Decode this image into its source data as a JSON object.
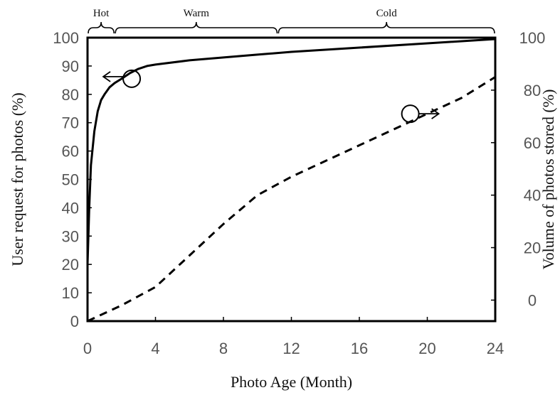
{
  "chart_data": {
    "type": "line",
    "xlabel": "Photo Age (Month)",
    "ylabel": "User request for photos (%)",
    "y2label": "Volume of photos stored (%)",
    "xlim": [
      0,
      24
    ],
    "ylim": [
      0,
      100
    ],
    "y2lim": [
      -8,
      100
    ],
    "x_ticks": [
      0,
      4,
      8,
      12,
      16,
      20,
      24
    ],
    "y_ticks": [
      0,
      10,
      20,
      30,
      40,
      50,
      60,
      70,
      80,
      90,
      100
    ],
    "y2_ticks": [
      0,
      20,
      40,
      60,
      80,
      100
    ],
    "grid": false,
    "regions": [
      {
        "label": "Hot",
        "x_start": 0,
        "x_end": 1.6
      },
      {
        "label": "Warm",
        "x_start": 1.6,
        "x_end": 11.2
      },
      {
        "label": "Cold",
        "x_start": 11.2,
        "x_end": 24
      }
    ],
    "series": [
      {
        "axis": "left",
        "style": "solid",
        "color": "#000000",
        "points": [
          [
            0,
            20
          ],
          [
            0.1,
            40
          ],
          [
            0.2,
            55
          ],
          [
            0.4,
            67
          ],
          [
            0.6,
            74
          ],
          [
            0.8,
            78
          ],
          [
            1,
            80
          ],
          [
            1.3,
            82.5
          ],
          [
            1.6,
            84
          ],
          [
            2,
            85.5
          ],
          [
            2.5,
            87.5
          ],
          [
            3,
            89
          ],
          [
            3.5,
            90
          ],
          [
            4,
            90.5
          ],
          [
            6,
            92
          ],
          [
            8,
            93
          ],
          [
            10,
            94
          ],
          [
            12,
            95
          ],
          [
            16,
            96.5
          ],
          [
            20,
            98
          ],
          [
            24,
            99.5
          ]
        ],
        "marker": {
          "x": 2.6,
          "y": 85.5,
          "arrow": "left"
        }
      },
      {
        "axis": "right",
        "style": "dashed",
        "color": "#000000",
        "points": [
          [
            0,
            -8
          ],
          [
            2,
            -2
          ],
          [
            4,
            5
          ],
          [
            6,
            17
          ],
          [
            8,
            29
          ],
          [
            10,
            40
          ],
          [
            12,
            47
          ],
          [
            14,
            53
          ],
          [
            16,
            59
          ],
          [
            18,
            65
          ],
          [
            20,
            71
          ],
          [
            22,
            77
          ],
          [
            24,
            85
          ]
        ],
        "marker": {
          "x": 19,
          "y": 71,
          "arrow": "right"
        }
      }
    ]
  }
}
